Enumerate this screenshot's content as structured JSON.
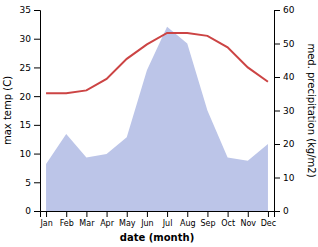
{
  "chart_data": {
    "type": "line",
    "categories": [
      "Jan",
      "Feb",
      "Mar",
      "Apr",
      "May",
      "Jun",
      "Jul",
      "Aug",
      "Sep",
      "Oct",
      "Nov",
      "Dec"
    ],
    "series": [
      {
        "type": "area",
        "axis": "y2",
        "color": "#bcc5e8",
        "values": [
          14,
          23,
          16,
          17,
          22,
          42,
          55,
          50,
          30,
          16,
          15,
          20
        ]
      },
      {
        "type": "line",
        "color": "#cc4444",
        "values": [
          20.5,
          20.5,
          21.0,
          23.0,
          26.5,
          29.0,
          31.0,
          31.0,
          30.5,
          28.5,
          25.0,
          22.5
        ]
      }
    ],
    "xlabel": "date (month)",
    "ylabel": "max temp (C)",
    "y2label": "med. precipitation (kg/m2)",
    "ylim": [
      0,
      35
    ],
    "yticks": [
      0,
      5,
      10,
      15,
      20,
      25,
      30,
      35
    ],
    "y2lim": [
      0,
      60
    ],
    "y2ticks": [
      0,
      10,
      20,
      30,
      40,
      50,
      60
    ]
  }
}
